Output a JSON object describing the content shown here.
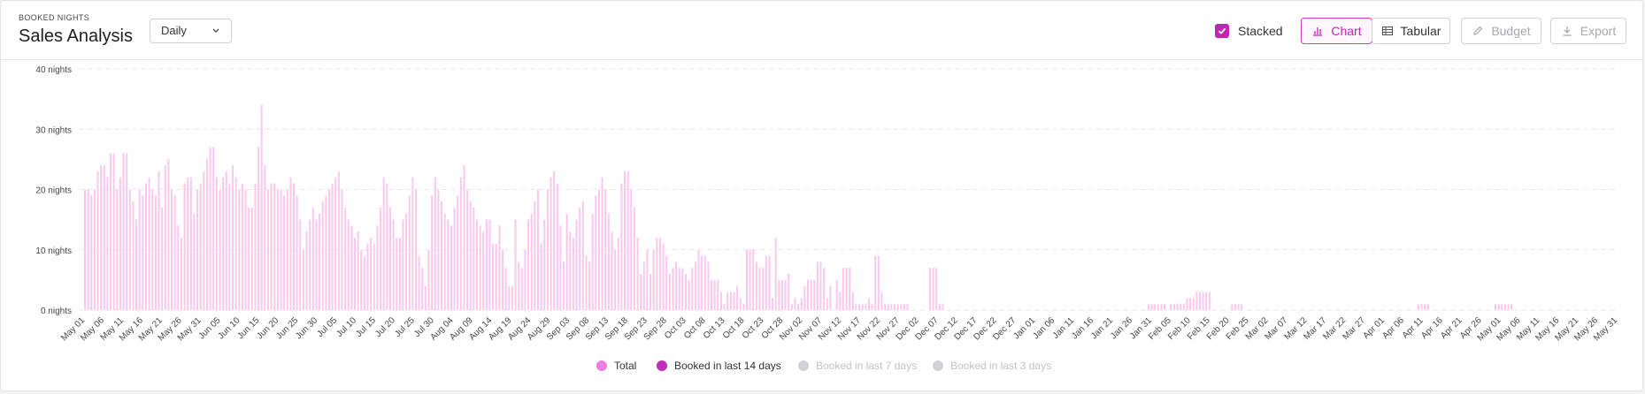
{
  "header": {
    "overline": "BOOKED NIGHTS",
    "title": "Sales Analysis",
    "period_select": "Daily",
    "stacked_label": "Stacked",
    "chart_button": "Chart",
    "tabular_button": "Tabular",
    "budget_button": "Budget",
    "export_button": "Export"
  },
  "colors": {
    "accent": "#c026b3",
    "total": "#f9c8ef",
    "booked14": "#c52bbb",
    "disabled": "#d2d2d5"
  },
  "chart_data": {
    "type": "bar",
    "stacked": true,
    "ylim": [
      0,
      40
    ],
    "yticks": [
      "0 nights",
      "10 nights",
      "20 nights",
      "30 nights",
      "40 nights"
    ],
    "x_tick_labels": [
      "May 01",
      "May 06",
      "May 11",
      "May 16",
      "May 21",
      "May 26",
      "May 31",
      "Jun 05",
      "Jun 10",
      "Jun 15",
      "Jun 20",
      "Jun 25",
      "Jun 30",
      "Jul 05",
      "Jul 10",
      "Jul 15",
      "Jul 20",
      "Jul 25",
      "Jul 30",
      "Aug 04",
      "Aug 09",
      "Aug 14",
      "Aug 19",
      "Aug 24",
      "Aug 29",
      "Sep 03",
      "Sep 08",
      "Sep 13",
      "Sep 18",
      "Sep 23",
      "Sep 28",
      "Oct 03",
      "Oct 08",
      "Oct 13",
      "Oct 18",
      "Oct 23",
      "Oct 28",
      "Nov 02",
      "Nov 07",
      "Nov 12",
      "Nov 17",
      "Nov 22",
      "Nov 27",
      "Dec 02",
      "Dec 07",
      "Dec 12",
      "Dec 17",
      "Dec 22",
      "Dec 27",
      "Jan 01",
      "Jan 06",
      "Jan 11",
      "Jan 16",
      "Jan 21",
      "Jan 26",
      "Jan 31",
      "Feb 05",
      "Feb 10",
      "Feb 15",
      "Feb 20",
      "Feb 25",
      "Mar 02",
      "Mar 07",
      "Mar 12",
      "Mar 17",
      "Mar 22",
      "Mar 27",
      "Apr 01",
      "Apr 06",
      "Apr 11",
      "Apr 16",
      "Apr 21",
      "Apr 26",
      "May 01",
      "May 06",
      "May 11",
      "May 16",
      "May 21",
      "May 26",
      "May 31"
    ],
    "series": [
      {
        "name": "Total",
        "values": [
          20,
          20,
          19,
          20,
          23,
          24,
          24,
          22,
          26,
          26,
          20,
          22,
          26,
          26,
          20,
          18,
          15,
          20,
          19,
          21,
          22,
          20,
          19,
          23,
          17,
          24,
          25,
          20,
          19,
          14,
          12,
          21,
          22,
          22,
          16,
          20,
          21,
          23,
          25,
          27,
          27,
          22,
          20,
          22,
          23,
          21,
          24,
          22,
          20,
          21,
          20,
          17,
          17,
          21,
          27,
          34,
          24,
          20,
          21,
          21,
          20,
          20,
          19,
          20,
          22,
          21,
          19,
          15,
          10,
          13,
          15,
          17,
          15,
          16,
          18,
          19,
          20,
          21,
          22,
          23,
          20,
          17,
          15,
          14,
          12,
          13,
          10,
          9,
          11,
          12,
          11,
          14,
          17,
          22,
          21,
          17,
          15,
          12,
          12,
          15,
          16,
          19,
          22,
          20,
          9,
          7,
          4,
          10,
          19,
          22,
          20,
          18,
          16,
          15,
          14,
          17,
          19,
          22,
          24,
          20,
          18,
          17,
          15,
          14,
          13,
          15,
          15,
          11,
          11,
          14,
          10,
          7,
          4,
          4,
          15,
          8,
          7,
          10,
          15,
          16,
          18,
          20,
          11,
          15,
          20,
          22,
          23,
          21,
          14,
          8,
          16,
          13,
          12,
          15,
          17,
          18,
          9,
          8,
          16,
          19,
          20,
          22,
          20,
          16,
          13,
          10,
          12,
          21,
          23,
          23,
          20,
          17,
          12,
          6,
          8,
          10,
          6,
          10,
          12,
          12,
          11,
          9,
          6,
          7,
          8,
          7,
          7,
          6,
          5,
          7,
          8,
          10,
          9,
          9,
          8,
          5,
          5,
          5,
          3,
          1,
          3,
          3,
          3,
          4,
          2,
          1,
          10,
          10,
          10,
          8,
          7,
          7,
          9,
          9,
          2,
          12,
          5,
          5,
          5,
          6,
          1,
          2,
          1,
          2,
          4,
          5,
          5,
          5,
          8,
          8,
          7,
          2,
          4,
          0,
          5,
          3,
          7,
          7,
          7,
          3,
          1,
          1,
          1,
          1,
          2,
          1,
          9,
          9,
          3,
          1,
          1,
          1,
          1,
          1,
          1,
          1,
          1,
          0,
          0,
          0,
          0,
          0,
          0,
          7,
          7,
          7,
          1,
          1,
          0,
          0,
          0,
          0,
          0,
          0,
          0,
          0,
          0,
          0,
          0,
          0,
          0,
          0,
          0,
          0,
          0,
          0,
          0,
          0,
          0,
          0,
          0,
          0,
          0,
          0,
          0,
          0,
          0,
          0,
          0,
          0,
          0,
          0,
          0,
          0,
          0,
          0,
          0,
          0,
          0,
          0,
          0,
          0,
          0,
          0,
          0,
          0,
          0,
          0,
          0,
          0,
          0,
          0,
          0,
          0,
          0,
          0,
          0,
          0,
          0,
          0,
          0,
          1,
          1,
          1,
          1,
          1,
          1,
          0,
          1,
          1,
          1,
          1,
          1,
          2,
          2,
          2,
          3,
          3,
          3,
          3,
          3,
          0,
          0,
          0,
          0,
          0,
          0,
          1,
          1,
          1,
          1,
          0,
          0,
          0,
          0,
          0,
          0,
          0,
          0,
          0,
          0,
          0,
          0,
          0,
          0,
          0,
          0,
          0,
          0,
          0,
          0,
          0,
          0,
          0,
          0,
          0,
          0,
          0,
          0,
          0,
          0,
          0,
          0,
          0,
          0,
          0,
          0,
          0,
          0,
          0,
          0,
          0,
          0,
          0,
          0,
          0,
          0,
          0,
          0,
          0,
          0,
          0,
          0,
          0,
          0,
          1,
          1,
          1,
          1,
          0,
          0,
          0,
          0,
          0,
          0,
          0,
          0,
          0,
          0,
          0,
          0,
          0,
          0,
          0,
          0,
          0,
          0,
          0,
          0,
          1,
          1,
          1,
          1,
          1,
          1,
          0,
          0,
          0,
          0,
          0,
          0,
          0,
          0,
          0,
          0,
          0,
          0,
          0,
          0,
          0,
          0,
          0,
          0,
          0,
          0,
          0,
          0,
          0,
          0,
          0,
          0,
          0,
          0,
          0,
          0,
          0,
          0,
          0
        ]
      },
      {
        "name": "Booked in last 14 days",
        "values": [
          0,
          0,
          0,
          0,
          0,
          0,
          0,
          0,
          0,
          0,
          0,
          0,
          0,
          0,
          0,
          0,
          0,
          0,
          0,
          0,
          0,
          0,
          0,
          0,
          0,
          0,
          0,
          0,
          0,
          0,
          0,
          0,
          0,
          0,
          0,
          0,
          0,
          0,
          0,
          0,
          0,
          0,
          0,
          0,
          0,
          0,
          0,
          0,
          0,
          0,
          0,
          0,
          0,
          0,
          0,
          0,
          0,
          0,
          0,
          0,
          0,
          0,
          0,
          0,
          0,
          0,
          0,
          0,
          0,
          0,
          0,
          0,
          0,
          0,
          0,
          0,
          0,
          0,
          0,
          0,
          0,
          0,
          0,
          0,
          0,
          0,
          0,
          0,
          0,
          0,
          0,
          0,
          0,
          0,
          0,
          0,
          0,
          0,
          0,
          0,
          0,
          0,
          0,
          0,
          0,
          0,
          0,
          0,
          0,
          0,
          0,
          0,
          0,
          0,
          0,
          0,
          0,
          0,
          0,
          0,
          0,
          0,
          0,
          0,
          0,
          0,
          0,
          0,
          0,
          0,
          0,
          0,
          0,
          0,
          0,
          0,
          0,
          0,
          0,
          0,
          0,
          0,
          0,
          0,
          0,
          0,
          0,
          0,
          0,
          0,
          0,
          0,
          0,
          0,
          0,
          0,
          0,
          0,
          0,
          0,
          0,
          0,
          0,
          0,
          0,
          0,
          0,
          0,
          0,
          0,
          0,
          0,
          0,
          0,
          0,
          0,
          0,
          0,
          0,
          0,
          0,
          0,
          0,
          0,
          0,
          0,
          0,
          0,
          0,
          0,
          0,
          0,
          0,
          0,
          0,
          0,
          0,
          0,
          0,
          0,
          0,
          0,
          0,
          0,
          0,
          0,
          0,
          0,
          0,
          0,
          0,
          0,
          0,
          0,
          0,
          0,
          0,
          0,
          0,
          0,
          0,
          0,
          0,
          0,
          0,
          0,
          0,
          0,
          0,
          0,
          0,
          0,
          0,
          0,
          0,
          0,
          0,
          0,
          0,
          0,
          0,
          0,
          0,
          0,
          0,
          0,
          0,
          0,
          0,
          0,
          0,
          0,
          0,
          0,
          0,
          0,
          0,
          0,
          0,
          0,
          0,
          0,
          0,
          0,
          0,
          0,
          0,
          0,
          0,
          0,
          0,
          0,
          0,
          0,
          0,
          0,
          0,
          0,
          0,
          0,
          0,
          0,
          0,
          0,
          0,
          0,
          0,
          0,
          0,
          0,
          0,
          0,
          0,
          0,
          0,
          0,
          0,
          0,
          0,
          0,
          0,
          0,
          0,
          0,
          0,
          0,
          0,
          0,
          0,
          0,
          0,
          0,
          0,
          0,
          0,
          0,
          0,
          0,
          0,
          0,
          0,
          0,
          0,
          0,
          0,
          0,
          0,
          0,
          0,
          0,
          0,
          0,
          0,
          0,
          0,
          0,
          0,
          0,
          0,
          0,
          0,
          0,
          0,
          0,
          0,
          0,
          0,
          0,
          0,
          0,
          0,
          0,
          0,
          0,
          0,
          0,
          0,
          0,
          0,
          0,
          0,
          0,
          0,
          0,
          0,
          0,
          0,
          0,
          0,
          0,
          0,
          0,
          0,
          0,
          0,
          0,
          0,
          0,
          0,
          0,
          0,
          0,
          0,
          0,
          0,
          0,
          0,
          0,
          0,
          0,
          0,
          0,
          0,
          0,
          0,
          0,
          0,
          0,
          0,
          0,
          0,
          0,
          0,
          0,
          0,
          0,
          0,
          0,
          0,
          0,
          0,
          0,
          0,
          0,
          0,
          0,
          0,
          0,
          0,
          0,
          0,
          0,
          0,
          0,
          0,
          0,
          0,
          0,
          0,
          0,
          0,
          0,
          0,
          0,
          0,
          0,
          0,
          0,
          0,
          0,
          0,
          0,
          0,
          0,
          0,
          0,
          0,
          0,
          0,
          0,
          0,
          0,
          0,
          0,
          0,
          0,
          0,
          0,
          0,
          0,
          0,
          0,
          0,
          0,
          0,
          0,
          0,
          0,
          0,
          0,
          0,
          0
        ]
      },
      {
        "name": "Booked in last 7 days",
        "values": []
      },
      {
        "name": "Booked in last 3 days",
        "values": []
      }
    ],
    "legend": [
      "Total",
      "Booked in last 14 days",
      "Booked in last 7 days",
      "Booked in last 3 days"
    ],
    "legend_position": "bottom",
    "grid": true
  }
}
